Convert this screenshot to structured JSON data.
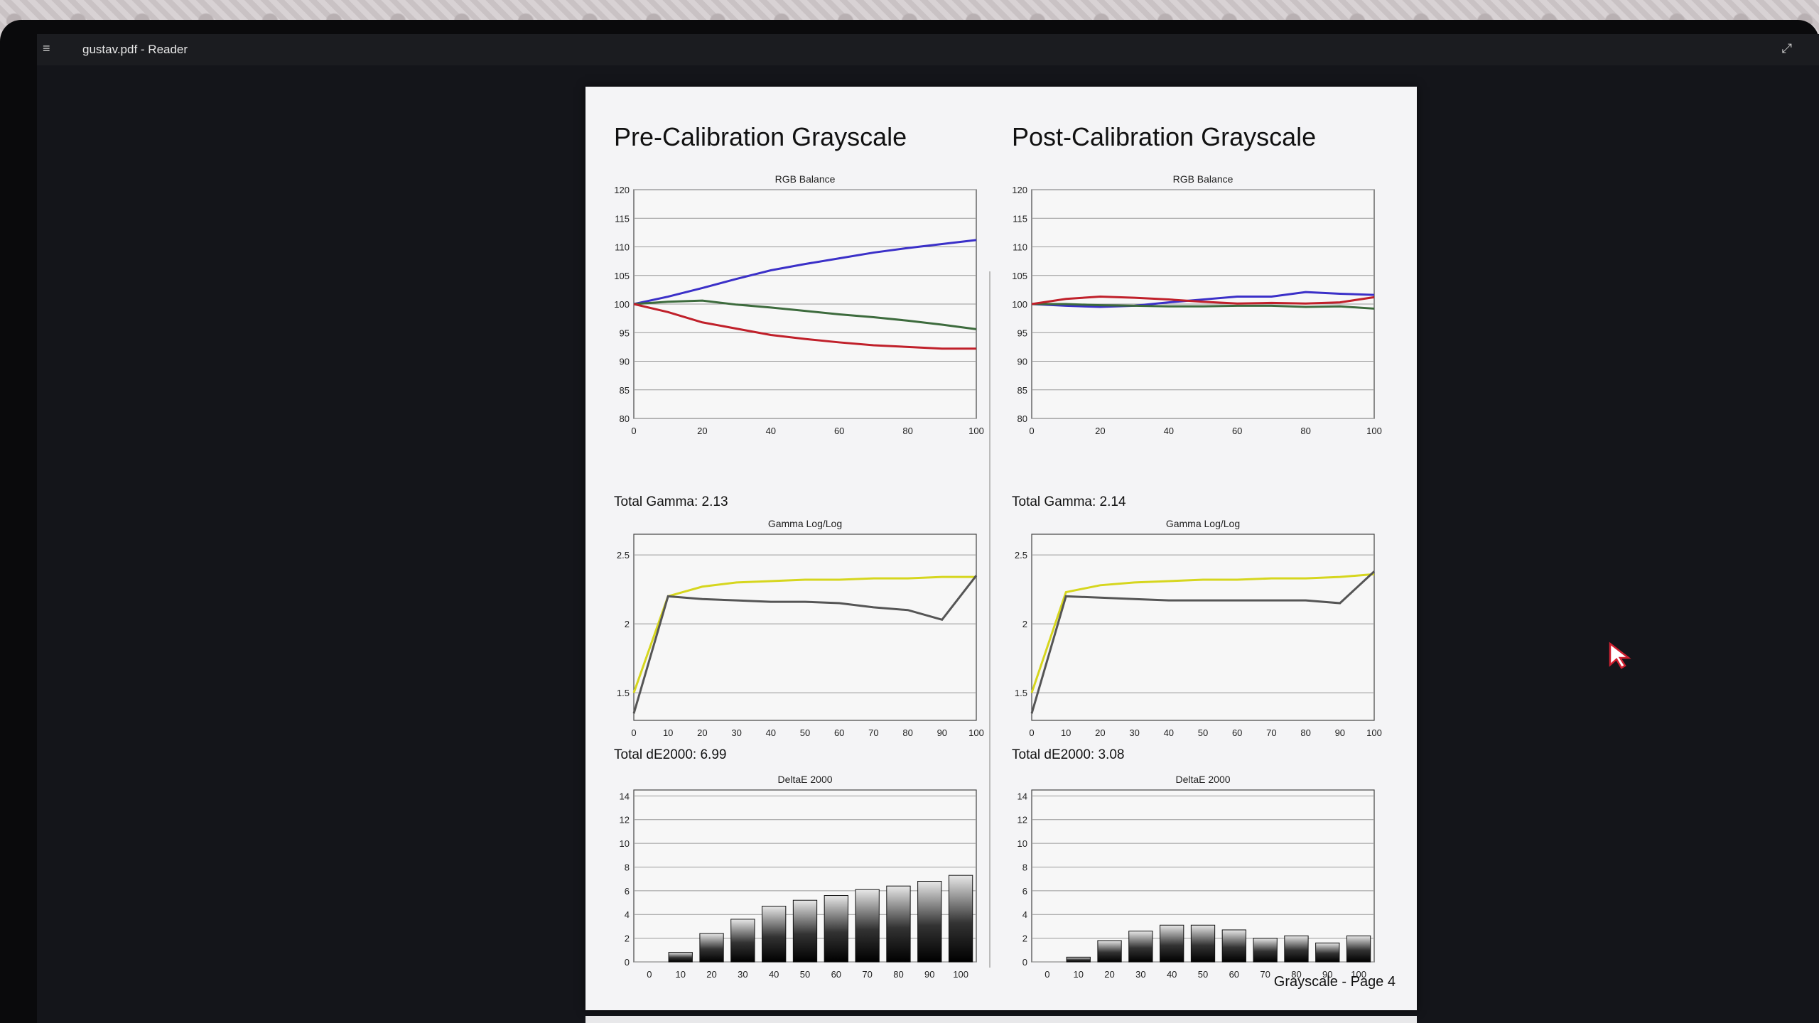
{
  "window": {
    "title": "gustav.pdf - Reader"
  },
  "page": {
    "footer": "Grayscale - Page 4",
    "left": {
      "title": "Pre-Calibration Grayscale",
      "gamma_label": "Total Gamma: 2.13",
      "de_label": "Total dE2000: 6.99"
    },
    "right": {
      "title": "Post-Calibration Grayscale",
      "gamma_label": "Total Gamma: 2.14",
      "de_label": "Total dE2000: 3.08"
    }
  },
  "chart_data": [
    {
      "id": "pre-rgb",
      "type": "line",
      "title": "RGB Balance",
      "x": [
        0,
        10,
        20,
        30,
        40,
        50,
        60,
        70,
        80,
        90,
        100
      ],
      "xticks": [
        0,
        20,
        40,
        60,
        80,
        100
      ],
      "yticks": [
        80,
        85,
        90,
        95,
        100,
        105,
        110,
        115,
        120
      ],
      "ylim": [
        80,
        120
      ],
      "grid": true,
      "series": [
        {
          "color": "#3b30c8",
          "values": [
            100,
            101.3,
            102.8,
            104.4,
            105.9,
            107,
            108,
            109,
            109.8,
            110.5,
            111.2
          ]
        },
        {
          "color": "#3d6b3d",
          "values": [
            100,
            100.4,
            100.6,
            99.9,
            99.4,
            98.8,
            98.2,
            97.7,
            97.1,
            96.4,
            95.6
          ]
        },
        {
          "color": "#c0202a",
          "values": [
            100,
            98.6,
            96.8,
            95.7,
            94.6,
            93.9,
            93.3,
            92.8,
            92.5,
            92.2,
            92.2
          ]
        }
      ]
    },
    {
      "id": "pre-gamma",
      "type": "line",
      "title": "Gamma Log/Log",
      "x": [
        0,
        10,
        20,
        30,
        40,
        50,
        60,
        70,
        80,
        90,
        100
      ],
      "xticks": [
        0,
        10,
        20,
        30,
        40,
        50,
        60,
        70,
        80,
        90,
        100
      ],
      "ytick_labels": [
        "1.5",
        "2",
        "2.5"
      ],
      "yticks": [
        1.5,
        2,
        2.5
      ],
      "ylim": [
        1.3,
        2.65
      ],
      "grid": true,
      "series": [
        {
          "color": "#d6d61e",
          "values": [
            1.5,
            2.2,
            2.27,
            2.3,
            2.31,
            2.32,
            2.32,
            2.33,
            2.33,
            2.34,
            2.34
          ]
        },
        {
          "color": "#555555",
          "values": [
            1.35,
            2.2,
            2.18,
            2.17,
            2.16,
            2.16,
            2.15,
            2.12,
            2.1,
            2.03,
            2.35
          ]
        }
      ]
    },
    {
      "id": "pre-de",
      "type": "bar",
      "title": "DeltaE 2000",
      "categories": [
        "0",
        "10",
        "20",
        "30",
        "40",
        "50",
        "60",
        "70",
        "80",
        "90",
        "100"
      ],
      "values": [
        0,
        0.8,
        2.4,
        3.6,
        4.7,
        5.2,
        5.6,
        6.1,
        6.4,
        6.8,
        7.3
      ],
      "yticks": [
        0,
        2,
        4,
        6,
        8,
        10,
        12,
        14
      ],
      "ylim": [
        0,
        14.5
      ],
      "grid": true
    },
    {
      "id": "post-rgb",
      "type": "line",
      "title": "RGB Balance",
      "x": [
        0,
        10,
        20,
        30,
        40,
        50,
        60,
        70,
        80,
        90,
        100
      ],
      "xticks": [
        0,
        20,
        40,
        60,
        80,
        100
      ],
      "yticks": [
        80,
        85,
        90,
        95,
        100,
        105,
        110,
        115,
        120
      ],
      "ylim": [
        80,
        120
      ],
      "grid": true,
      "series": [
        {
          "color": "#3b30c8",
          "values": [
            100,
            99.7,
            99.5,
            99.7,
            100.3,
            100.8,
            101.3,
            101.3,
            102.1,
            101.8,
            101.6
          ]
        },
        {
          "color": "#3d6b3d",
          "values": [
            100,
            100,
            99.8,
            99.7,
            99.6,
            99.6,
            99.7,
            99.7,
            99.5,
            99.6,
            99.2
          ]
        },
        {
          "color": "#c0202a",
          "values": [
            100,
            100.9,
            101.3,
            101.1,
            100.8,
            100.4,
            100.1,
            100.2,
            100.1,
            100.3,
            101.2
          ]
        }
      ]
    },
    {
      "id": "post-gamma",
      "type": "line",
      "title": "Gamma Log/Log",
      "x": [
        0,
        10,
        20,
        30,
        40,
        50,
        60,
        70,
        80,
        90,
        100
      ],
      "xticks": [
        0,
        10,
        20,
        30,
        40,
        50,
        60,
        70,
        80,
        90,
        100
      ],
      "ytick_labels": [
        "1.5",
        "2",
        "2.5"
      ],
      "yticks": [
        1.5,
        2,
        2.5
      ],
      "ylim": [
        1.3,
        2.65
      ],
      "grid": true,
      "series": [
        {
          "color": "#d6d61e",
          "values": [
            1.5,
            2.23,
            2.28,
            2.3,
            2.31,
            2.32,
            2.32,
            2.33,
            2.33,
            2.34,
            2.36
          ]
        },
        {
          "color": "#555555",
          "values": [
            1.35,
            2.2,
            2.19,
            2.18,
            2.17,
            2.17,
            2.17,
            2.17,
            2.17,
            2.15,
            2.38
          ]
        }
      ]
    },
    {
      "id": "post-de",
      "type": "bar",
      "title": "DeltaE 2000",
      "categories": [
        "0",
        "10",
        "20",
        "30",
        "40",
        "50",
        "60",
        "70",
        "80",
        "90",
        "100"
      ],
      "values": [
        0,
        0.4,
        1.8,
        2.6,
        3.1,
        3.1,
        2.7,
        2.0,
        2.2,
        1.6,
        2.2
      ],
      "yticks": [
        0,
        2,
        4,
        6,
        8,
        10,
        12,
        14
      ],
      "ylim": [
        0,
        14.5
      ],
      "grid": true
    }
  ]
}
